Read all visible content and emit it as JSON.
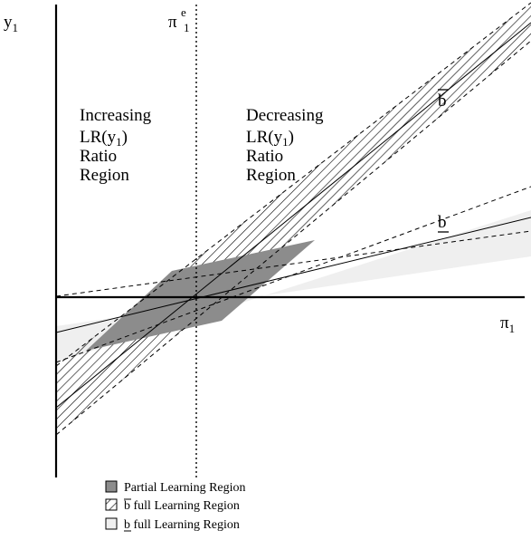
{
  "y_axis_label": {
    "main": "y",
    "sub": "1"
  },
  "x_axis_label": {
    "main": "π",
    "sub": "1"
  },
  "threshold_label": {
    "main": "π",
    "sup": "e",
    "sub": "1"
  },
  "left_region": {
    "line1": "Increasing",
    "line2": {
      "pre": "LR(y",
      "sub": "1",
      "post": ")"
    },
    "line3": "Ratio",
    "line4": "Region"
  },
  "right_region": {
    "line1": "Decreasing",
    "line2": {
      "pre": "LR(y",
      "sub": "1",
      "post": ")"
    },
    "line3": "Ratio",
    "line4": "Region"
  },
  "b_upper_label": "b",
  "b_lower_label": "b",
  "legend": {
    "partial": "Partial Learning Region",
    "bbar": {
      "symbol": "b",
      "text": " full Learning Region"
    },
    "bunder": {
      "symbol": "b",
      "text": " full Learning Region"
    }
  },
  "colors": {
    "partial_fill": "#8c8c8c",
    "light_band": "#efefef",
    "hatch": "#000000"
  }
}
